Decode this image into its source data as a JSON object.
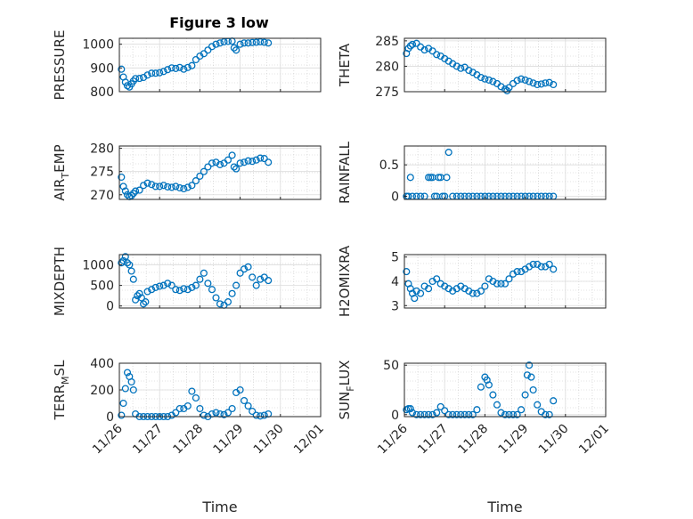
{
  "figure": {
    "title": "Figure 3 low",
    "marker_color": "#0072bd",
    "grid_color": "#c8c8c8"
  },
  "chart_data": [
    {
      "type": "scatter",
      "title": "Figure 3 low",
      "ylabel": "PRESSURE",
      "xlabel": "",
      "xlim": [
        0,
        5
      ],
      "ylim": [
        800,
        1025
      ],
      "yticks": [
        800,
        900,
        1000
      ],
      "xticks": [],
      "grid": true,
      "points": [
        [
          0.05,
          895
        ],
        [
          0.1,
          862
        ],
        [
          0.15,
          840
        ],
        [
          0.2,
          825
        ],
        [
          0.25,
          820
        ],
        [
          0.3,
          833
        ],
        [
          0.35,
          845
        ],
        [
          0.4,
          855
        ],
        [
          0.5,
          856
        ],
        [
          0.6,
          860
        ],
        [
          0.7,
          870
        ],
        [
          0.8,
          878
        ],
        [
          0.9,
          878
        ],
        [
          1.0,
          880
        ],
        [
          1.1,
          885
        ],
        [
          1.2,
          893
        ],
        [
          1.3,
          900
        ],
        [
          1.4,
          898
        ],
        [
          1.5,
          902
        ],
        [
          1.6,
          895
        ],
        [
          1.7,
          902
        ],
        [
          1.8,
          910
        ],
        [
          1.9,
          935
        ],
        [
          2.0,
          950
        ],
        [
          2.1,
          960
        ],
        [
          2.2,
          975
        ],
        [
          2.3,
          990
        ],
        [
          2.4,
          1000
        ],
        [
          2.5,
          1005
        ],
        [
          2.6,
          1010
        ],
        [
          2.7,
          1012
        ],
        [
          2.8,
          1013
        ],
        [
          2.85,
          985
        ],
        [
          2.9,
          975
        ],
        [
          3.0,
          1000
        ],
        [
          3.1,
          1005
        ],
        [
          3.2,
          1005
        ],
        [
          3.3,
          1007
        ],
        [
          3.4,
          1008
        ],
        [
          3.5,
          1010
        ],
        [
          3.6,
          1008
        ],
        [
          3.7,
          1005
        ]
      ]
    },
    {
      "type": "scatter",
      "ylabel": "THETA",
      "xlabel": "",
      "xlim": [
        0,
        5
      ],
      "ylim": [
        275,
        285.5
      ],
      "yticks": [
        275,
        280,
        285
      ],
      "xticks": [],
      "grid": true,
      "points": [
        [
          0.05,
          282.5
        ],
        [
          0.1,
          283.5
        ],
        [
          0.15,
          284
        ],
        [
          0.2,
          284.3
        ],
        [
          0.3,
          284.5
        ],
        [
          0.4,
          283.8
        ],
        [
          0.5,
          283.2
        ],
        [
          0.6,
          283.5
        ],
        [
          0.7,
          283.0
        ],
        [
          0.8,
          282.3
        ],
        [
          0.9,
          282.0
        ],
        [
          1.0,
          281.5
        ],
        [
          1.1,
          281.0
        ],
        [
          1.2,
          280.5
        ],
        [
          1.3,
          280.0
        ],
        [
          1.4,
          279.6
        ],
        [
          1.5,
          279.8
        ],
        [
          1.6,
          279.2
        ],
        [
          1.7,
          278.8
        ],
        [
          1.8,
          278.3
        ],
        [
          1.9,
          277.8
        ],
        [
          2.0,
          277.5
        ],
        [
          2.1,
          277.3
        ],
        [
          2.2,
          277.0
        ],
        [
          2.3,
          276.6
        ],
        [
          2.4,
          276.0
        ],
        [
          2.5,
          275.5
        ],
        [
          2.55,
          275.2
        ],
        [
          2.6,
          275.8
        ],
        [
          2.7,
          276.6
        ],
        [
          2.8,
          277.2
        ],
        [
          2.9,
          277.5
        ],
        [
          3.0,
          277.3
        ],
        [
          3.1,
          277.0
        ],
        [
          3.2,
          276.7
        ],
        [
          3.3,
          276.4
        ],
        [
          3.4,
          276.5
        ],
        [
          3.5,
          276.7
        ],
        [
          3.6,
          276.8
        ],
        [
          3.7,
          276.4
        ]
      ]
    },
    {
      "type": "scatter",
      "ylabel": "AIR_TEMP",
      "xlabel": "",
      "xlim": [
        0,
        5
      ],
      "ylim": [
        269,
        280.5
      ],
      "yticks": [
        270,
        275,
        280
      ],
      "xticks": [],
      "grid": true,
      "points": [
        [
          0.05,
          273.8
        ],
        [
          0.1,
          271.8
        ],
        [
          0.15,
          270.8
        ],
        [
          0.2,
          270.0
        ],
        [
          0.25,
          269.6
        ],
        [
          0.3,
          269.8
        ],
        [
          0.35,
          270.3
        ],
        [
          0.4,
          270.8
        ],
        [
          0.5,
          271.0
        ],
        [
          0.6,
          272.0
        ],
        [
          0.7,
          272.5
        ],
        [
          0.8,
          272.2
        ],
        [
          0.9,
          271.8
        ],
        [
          1.0,
          271.8
        ],
        [
          1.1,
          272.0
        ],
        [
          1.2,
          271.7
        ],
        [
          1.3,
          271.6
        ],
        [
          1.4,
          271.8
        ],
        [
          1.5,
          271.5
        ],
        [
          1.6,
          271.3
        ],
        [
          1.7,
          271.6
        ],
        [
          1.8,
          272.0
        ],
        [
          1.9,
          273.0
        ],
        [
          2.0,
          274.0
        ],
        [
          2.1,
          275.0
        ],
        [
          2.2,
          276.0
        ],
        [
          2.3,
          276.8
        ],
        [
          2.4,
          277.0
        ],
        [
          2.5,
          276.5
        ],
        [
          2.6,
          276.8
        ],
        [
          2.7,
          277.5
        ],
        [
          2.8,
          278.5
        ],
        [
          2.85,
          276.0
        ],
        [
          2.9,
          275.6
        ],
        [
          3.0,
          276.8
        ],
        [
          3.1,
          277.0
        ],
        [
          3.2,
          277.3
        ],
        [
          3.3,
          277.2
        ],
        [
          3.4,
          277.5
        ],
        [
          3.5,
          277.9
        ],
        [
          3.6,
          277.8
        ],
        [
          3.7,
          277.0
        ]
      ]
    },
    {
      "type": "scatter",
      "ylabel": "RAINFALL",
      "xlabel": "",
      "xlim": [
        0,
        5
      ],
      "ylim": [
        -0.05,
        0.8
      ],
      "yticks": [
        0,
        0.5
      ],
      "xticks": [],
      "grid": true,
      "points": [
        [
          0.05,
          0
        ],
        [
          0.1,
          0
        ],
        [
          0.15,
          0.3
        ],
        [
          0.2,
          0
        ],
        [
          0.3,
          0
        ],
        [
          0.4,
          0
        ],
        [
          0.5,
          0
        ],
        [
          0.6,
          0.3
        ],
        [
          0.65,
          0.3
        ],
        [
          0.7,
          0.3
        ],
        [
          0.75,
          0
        ],
        [
          0.8,
          0
        ],
        [
          0.85,
          0.3
        ],
        [
          0.9,
          0.3
        ],
        [
          0.95,
          0
        ],
        [
          1.0,
          0
        ],
        [
          1.05,
          0.3
        ],
        [
          1.1,
          0.7
        ],
        [
          1.2,
          0
        ],
        [
          1.3,
          0
        ],
        [
          1.4,
          0
        ],
        [
          1.5,
          0
        ],
        [
          1.6,
          0
        ],
        [
          1.7,
          0
        ],
        [
          1.8,
          0
        ],
        [
          1.9,
          0
        ],
        [
          2.0,
          0
        ],
        [
          2.1,
          0
        ],
        [
          2.2,
          0
        ],
        [
          2.3,
          0
        ],
        [
          2.4,
          0
        ],
        [
          2.5,
          0
        ],
        [
          2.6,
          0
        ],
        [
          2.7,
          0
        ],
        [
          2.8,
          0
        ],
        [
          2.9,
          0
        ],
        [
          3.0,
          0
        ],
        [
          3.1,
          0
        ],
        [
          3.2,
          0
        ],
        [
          3.3,
          0
        ],
        [
          3.4,
          0
        ],
        [
          3.5,
          0
        ],
        [
          3.6,
          0
        ],
        [
          3.7,
          0
        ]
      ]
    },
    {
      "type": "scatter",
      "ylabel": "MIXDEPTH",
      "xlabel": "",
      "xlim": [
        0,
        5
      ],
      "ylim": [
        -50,
        1250
      ],
      "yticks": [
        0,
        500,
        1000
      ],
      "xticks": [],
      "grid": true,
      "points": [
        [
          0.05,
          1050
        ],
        [
          0.1,
          1100
        ],
        [
          0.15,
          1200
        ],
        [
          0.2,
          1050
        ],
        [
          0.25,
          1000
        ],
        [
          0.3,
          850
        ],
        [
          0.35,
          650
        ],
        [
          0.4,
          150
        ],
        [
          0.45,
          250
        ],
        [
          0.5,
          300
        ],
        [
          0.55,
          200
        ],
        [
          0.6,
          50
        ],
        [
          0.65,
          100
        ],
        [
          0.7,
          350
        ],
        [
          0.8,
          400
        ],
        [
          0.9,
          450
        ],
        [
          1.0,
          480
        ],
        [
          1.1,
          500
        ],
        [
          1.2,
          550
        ],
        [
          1.3,
          500
        ],
        [
          1.4,
          400
        ],
        [
          1.5,
          380
        ],
        [
          1.6,
          420
        ],
        [
          1.7,
          400
        ],
        [
          1.8,
          450
        ],
        [
          1.9,
          500
        ],
        [
          2.0,
          650
        ],
        [
          2.1,
          800
        ],
        [
          2.2,
          550
        ],
        [
          2.3,
          400
        ],
        [
          2.4,
          200
        ],
        [
          2.5,
          50
        ],
        [
          2.6,
          20
        ],
        [
          2.7,
          100
        ],
        [
          2.8,
          300
        ],
        [
          2.9,
          500
        ],
        [
          3.0,
          800
        ],
        [
          3.1,
          900
        ],
        [
          3.2,
          950
        ],
        [
          3.3,
          700
        ],
        [
          3.4,
          500
        ],
        [
          3.5,
          650
        ],
        [
          3.6,
          700
        ],
        [
          3.7,
          620
        ]
      ]
    },
    {
      "type": "scatter",
      "ylabel": "H2OMIXRA",
      "xlabel": "",
      "xlim": [
        0,
        5
      ],
      "ylim": [
        2.9,
        5.1
      ],
      "yticks": [
        3,
        4,
        5
      ],
      "xticks": [],
      "grid": true,
      "points": [
        [
          0.05,
          4.4
        ],
        [
          0.1,
          3.9
        ],
        [
          0.15,
          3.7
        ],
        [
          0.2,
          3.5
        ],
        [
          0.25,
          3.3
        ],
        [
          0.3,
          3.6
        ],
        [
          0.4,
          3.5
        ],
        [
          0.5,
          3.8
        ],
        [
          0.6,
          3.7
        ],
        [
          0.7,
          4.0
        ],
        [
          0.8,
          4.1
        ],
        [
          0.9,
          3.9
        ],
        [
          1.0,
          3.8
        ],
        [
          1.1,
          3.7
        ],
        [
          1.2,
          3.6
        ],
        [
          1.3,
          3.7
        ],
        [
          1.4,
          3.8
        ],
        [
          1.5,
          3.7
        ],
        [
          1.6,
          3.6
        ],
        [
          1.7,
          3.5
        ],
        [
          1.8,
          3.5
        ],
        [
          1.9,
          3.6
        ],
        [
          2.0,
          3.8
        ],
        [
          2.1,
          4.1
        ],
        [
          2.2,
          4.0
        ],
        [
          2.3,
          3.9
        ],
        [
          2.4,
          3.9
        ],
        [
          2.5,
          3.9
        ],
        [
          2.6,
          4.1
        ],
        [
          2.7,
          4.3
        ],
        [
          2.8,
          4.4
        ],
        [
          2.9,
          4.4
        ],
        [
          3.0,
          4.5
        ],
        [
          3.1,
          4.6
        ],
        [
          3.2,
          4.7
        ],
        [
          3.3,
          4.7
        ],
        [
          3.4,
          4.6
        ],
        [
          3.5,
          4.6
        ],
        [
          3.6,
          4.7
        ],
        [
          3.7,
          4.5
        ]
      ]
    },
    {
      "type": "scatter",
      "ylabel": "TERR_MSL",
      "xlabel": "Time",
      "xlim": [
        0,
        5
      ],
      "ylim": [
        0,
        400
      ],
      "yticks": [
        0,
        200,
        400
      ],
      "xticks": [
        "11/26",
        "11/27",
        "11/28",
        "11/29",
        "11/30",
        "12/01"
      ],
      "grid": true,
      "points": [
        [
          0.05,
          10
        ],
        [
          0.1,
          100
        ],
        [
          0.15,
          210
        ],
        [
          0.2,
          330
        ],
        [
          0.25,
          300
        ],
        [
          0.3,
          260
        ],
        [
          0.35,
          200
        ],
        [
          0.4,
          20
        ],
        [
          0.5,
          0
        ],
        [
          0.6,
          0
        ],
        [
          0.7,
          0
        ],
        [
          0.8,
          0
        ],
        [
          0.9,
          0
        ],
        [
          1.0,
          0
        ],
        [
          1.1,
          0
        ],
        [
          1.2,
          0
        ],
        [
          1.3,
          10
        ],
        [
          1.4,
          30
        ],
        [
          1.5,
          60
        ],
        [
          1.6,
          60
        ],
        [
          1.7,
          80
        ],
        [
          1.8,
          190
        ],
        [
          1.9,
          140
        ],
        [
          2.0,
          60
        ],
        [
          2.1,
          10
        ],
        [
          2.2,
          0
        ],
        [
          2.3,
          20
        ],
        [
          2.4,
          30
        ],
        [
          2.5,
          20
        ],
        [
          2.6,
          15
        ],
        [
          2.7,
          30
        ],
        [
          2.8,
          60
        ],
        [
          2.9,
          180
        ],
        [
          3.0,
          200
        ],
        [
          3.1,
          120
        ],
        [
          3.2,
          80
        ],
        [
          3.3,
          40
        ],
        [
          3.4,
          10
        ],
        [
          3.5,
          5
        ],
        [
          3.6,
          10
        ],
        [
          3.7,
          20
        ]
      ]
    },
    {
      "type": "scatter",
      "ylabel": "SUN_FLUX",
      "xlabel": "Time",
      "xlim": [
        0,
        5
      ],
      "ylim": [
        -2,
        52
      ],
      "yticks": [
        0,
        50
      ],
      "xticks": [
        "11/26",
        "11/27",
        "11/28",
        "11/29",
        "11/30",
        "12/01"
      ],
      "grid": true,
      "points": [
        [
          0.05,
          5
        ],
        [
          0.1,
          6
        ],
        [
          0.15,
          6
        ],
        [
          0.2,
          2
        ],
        [
          0.3,
          0
        ],
        [
          0.4,
          0
        ],
        [
          0.5,
          0
        ],
        [
          0.6,
          0
        ],
        [
          0.7,
          0
        ],
        [
          0.8,
          2
        ],
        [
          0.9,
          8
        ],
        [
          1.0,
          4
        ],
        [
          1.1,
          0
        ],
        [
          1.2,
          0
        ],
        [
          1.3,
          0
        ],
        [
          1.4,
          0
        ],
        [
          1.5,
          0
        ],
        [
          1.6,
          0
        ],
        [
          1.7,
          0
        ],
        [
          1.8,
          5
        ],
        [
          1.9,
          28
        ],
        [
          2.0,
          38
        ],
        [
          2.05,
          35
        ],
        [
          2.1,
          30
        ],
        [
          2.2,
          20
        ],
        [
          2.3,
          10
        ],
        [
          2.4,
          2
        ],
        [
          2.5,
          0
        ],
        [
          2.6,
          0
        ],
        [
          2.7,
          0
        ],
        [
          2.8,
          0
        ],
        [
          2.9,
          5
        ],
        [
          3.0,
          20
        ],
        [
          3.05,
          40
        ],
        [
          3.1,
          50
        ],
        [
          3.15,
          38
        ],
        [
          3.2,
          25
        ],
        [
          3.3,
          10
        ],
        [
          3.4,
          3
        ],
        [
          3.5,
          0
        ],
        [
          3.6,
          0
        ],
        [
          3.7,
          14
        ]
      ]
    }
  ]
}
